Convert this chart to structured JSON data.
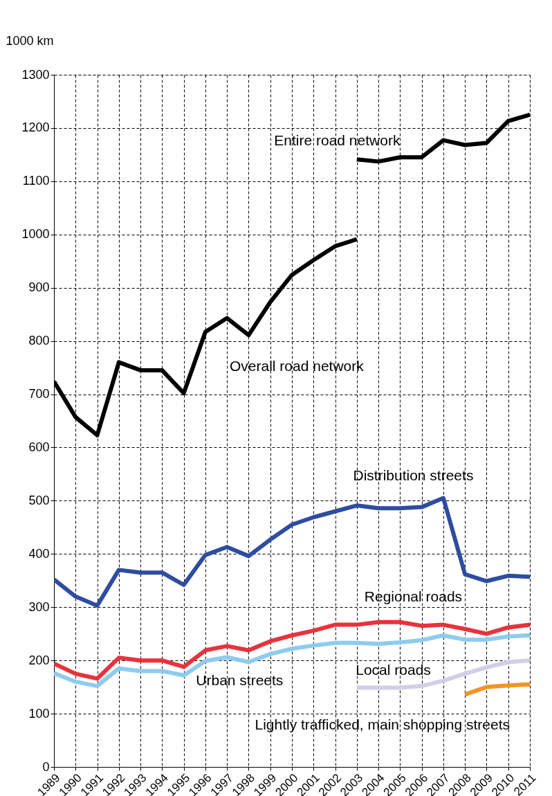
{
  "chart_data": {
    "type": "line",
    "ylabel": "1000 km",
    "xlim": [
      1989,
      2011
    ],
    "xticks": [
      1989,
      1990,
      1991,
      1992,
      1993,
      1994,
      1995,
      1996,
      1997,
      1998,
      1999,
      2000,
      2001,
      2002,
      2003,
      2004,
      2005,
      2006,
      2007,
      2008,
      2009,
      2010,
      2011
    ],
    "ylim": [
      0,
      1300
    ],
    "yticks": [
      0,
      100,
      200,
      300,
      400,
      500,
      600,
      700,
      800,
      900,
      1000,
      1100,
      1200,
      1300
    ],
    "grid": true,
    "series": [
      {
        "color": "#000000",
        "x": [
          1989,
          1990,
          1991,
          1992,
          1993,
          1994,
          1995,
          1996,
          1997,
          1998,
          1999,
          2000,
          2001,
          2002,
          2003
        ],
        "values": [
          724,
          657,
          623,
          760,
          745,
          745,
          702,
          817,
          843,
          811,
          873,
          924,
          952,
          978,
          991
        ]
      },
      {
        "color": "#000000",
        "x": [
          2003,
          2004,
          2005,
          2006,
          2007,
          2008,
          2009,
          2010,
          2011
        ],
        "values": [
          1141,
          1137,
          1145,
          1145,
          1177,
          1168,
          1172,
          1213,
          1225
        ]
      },
      {
        "color": "#2e4da0",
        "x": [
          1989,
          1990,
          1991,
          1992,
          1993,
          1994,
          1995,
          1996,
          1997,
          1998,
          1999,
          2000,
          2001,
          2002,
          2003,
          2004,
          2005,
          2006,
          2007,
          2008,
          2009,
          2010,
          2011
        ],
        "values": [
          352,
          320,
          303,
          370,
          365,
          365,
          342,
          398,
          413,
          396,
          427,
          455,
          469,
          480,
          491,
          486,
          486,
          488,
          505,
          362,
          349,
          359,
          357
        ]
      },
      {
        "color": "#e8323c",
        "x": [
          1989,
          1990,
          1991,
          1992,
          1993,
          1994,
          1995,
          1996,
          1997,
          1998,
          1999,
          2000,
          2001,
          2002,
          2003,
          2004,
          2005,
          2006,
          2007,
          2008,
          2009,
          2010,
          2011
        ],
        "values": [
          194,
          175,
          166,
          205,
          200,
          200,
          188,
          219,
          227,
          219,
          236,
          247,
          256,
          267,
          267,
          272,
          272,
          265,
          267,
          259,
          250,
          262,
          267
        ]
      },
      {
        "color": "#8ecbef",
        "x": [
          1989,
          1990,
          1991,
          1992,
          1993,
          1994,
          1995,
          1996,
          1997,
          1998,
          1999,
          2000,
          2001,
          2002,
          2003,
          2004,
          2005,
          2006,
          2007,
          2008,
          2009,
          2010,
          2011
        ],
        "values": [
          176,
          160,
          152,
          185,
          180,
          180,
          172,
          199,
          206,
          197,
          212,
          222,
          228,
          233,
          233,
          231,
          234,
          238,
          247,
          239,
          239,
          245,
          247
        ]
      },
      {
        "color": "#d3cde8",
        "x": [
          2003,
          2004,
          2005,
          2006,
          2007,
          2008,
          2009,
          2010,
          2011
        ],
        "values": [
          149,
          149,
          149,
          152,
          162,
          175,
          187,
          197,
          200
        ]
      },
      {
        "color": "#f39423",
        "x": [
          2008,
          2009,
          2010,
          2011
        ],
        "values": [
          136,
          150,
          153,
          155
        ]
      }
    ],
    "annotations": [
      "Entire road network",
      "Overall road network",
      "Distribution streets",
      "Regional roads",
      "Urban streets",
      "Local roads",
      "Lightly trafficked, main shopping streets"
    ]
  }
}
